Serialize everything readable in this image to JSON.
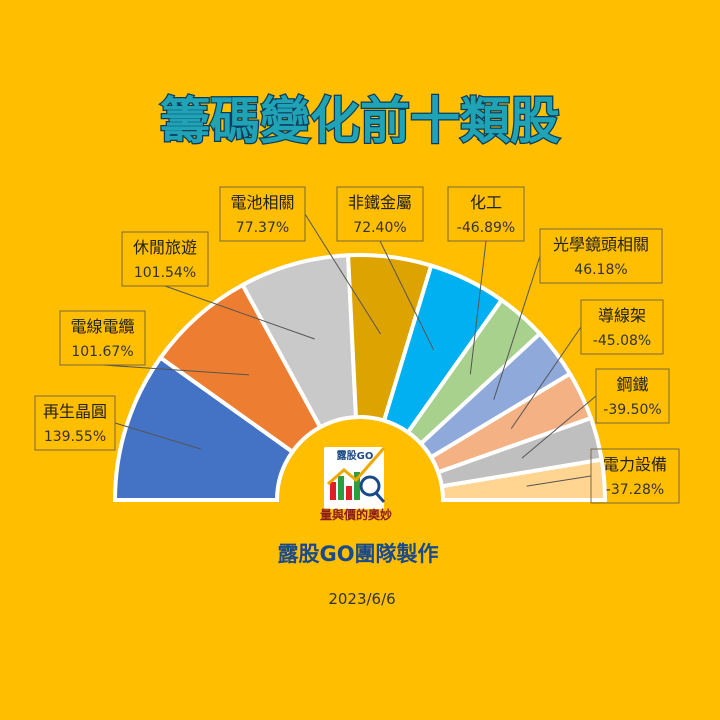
{
  "title": "籌碼變化前十類股",
  "footer": {
    "credit": "露股GO團隊製作",
    "date": "2023/6/6"
  },
  "logo": {
    "top_text": "露股GO",
    "bottom_text": "量與價的奧妙"
  },
  "colors": {
    "background": "#FFBE00",
    "title_fill": "#1FA3B5",
    "title_stroke": "#0B3C5D",
    "credit_text": "#1B4A8A",
    "label_box_border": "#7A6A3A"
  },
  "chart_data": {
    "type": "pie",
    "variant": "half-donut",
    "sort": "descending by absolute value",
    "categories": [
      "再生晶圓",
      "電線電纜",
      "休閒旅遊",
      "電池相關",
      "非鐵金屬",
      "化工",
      "光學鏡頭相關",
      "導線架",
      "鋼鐵",
      "電力設備"
    ],
    "values": [
      139.55,
      101.67,
      101.54,
      77.37,
      72.4,
      -46.89,
      46.18,
      -45.08,
      -39.5,
      -37.28
    ],
    "value_labels": [
      "139.55%",
      "101.67%",
      "101.54%",
      "77.37%",
      "72.40%",
      "-46.89%",
      "46.18%",
      "-45.08%",
      "-39.50%",
      "-37.28%"
    ],
    "colors": [
      "#4472C4",
      "#ED7D31",
      "#C9C9C9",
      "#DDA300",
      "#00B0F0",
      "#A9D18E",
      "#8FA9DB",
      "#F4B183",
      "#BFBFBF",
      "#FFD591"
    ],
    "legend": "none",
    "data_labels": "callout boxes with leader lines"
  }
}
